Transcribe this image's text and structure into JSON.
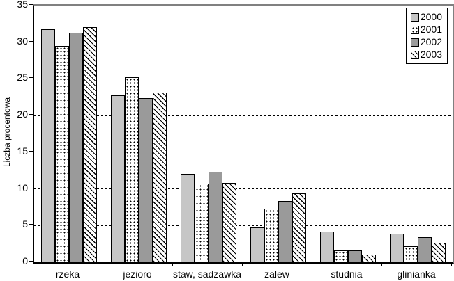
{
  "chart_data": {
    "type": "bar",
    "title": "",
    "xlabel": "",
    "ylabel": "Liczba procentowa",
    "ylim": [
      0,
      35
    ],
    "yticks": [
      0,
      5,
      10,
      15,
      20,
      25,
      30,
      35
    ],
    "grid": "horizontal-dashed",
    "legend_position": "top-right",
    "categories": [
      "rzeka",
      "jezioro",
      "staw, sadzawka",
      "zalew",
      "studnia",
      "glinianka"
    ],
    "series": [
      {
        "name": "2000",
        "pattern": "solid",
        "color": "#c6c6c6",
        "values": [
          31.8,
          22.8,
          12.0,
          4.7,
          4.2,
          3.9
        ]
      },
      {
        "name": "2001",
        "pattern": "dots",
        "color": "#ffffff",
        "values": [
          29.5,
          25.2,
          10.7,
          7.3,
          1.6,
          2.2
        ]
      },
      {
        "name": "2002",
        "pattern": "solid",
        "color": "#9a9a9a",
        "values": [
          31.3,
          22.4,
          12.3,
          8.3,
          1.6,
          3.4
        ]
      },
      {
        "name": "2003",
        "pattern": "hatch",
        "color": "#ffffff",
        "values": [
          32.1,
          23.1,
          10.8,
          9.4,
          1.0,
          2.7
        ]
      }
    ],
    "axis_color": "#000000",
    "plot_border_color": "#808080",
    "gridline_color": "#000000"
  }
}
